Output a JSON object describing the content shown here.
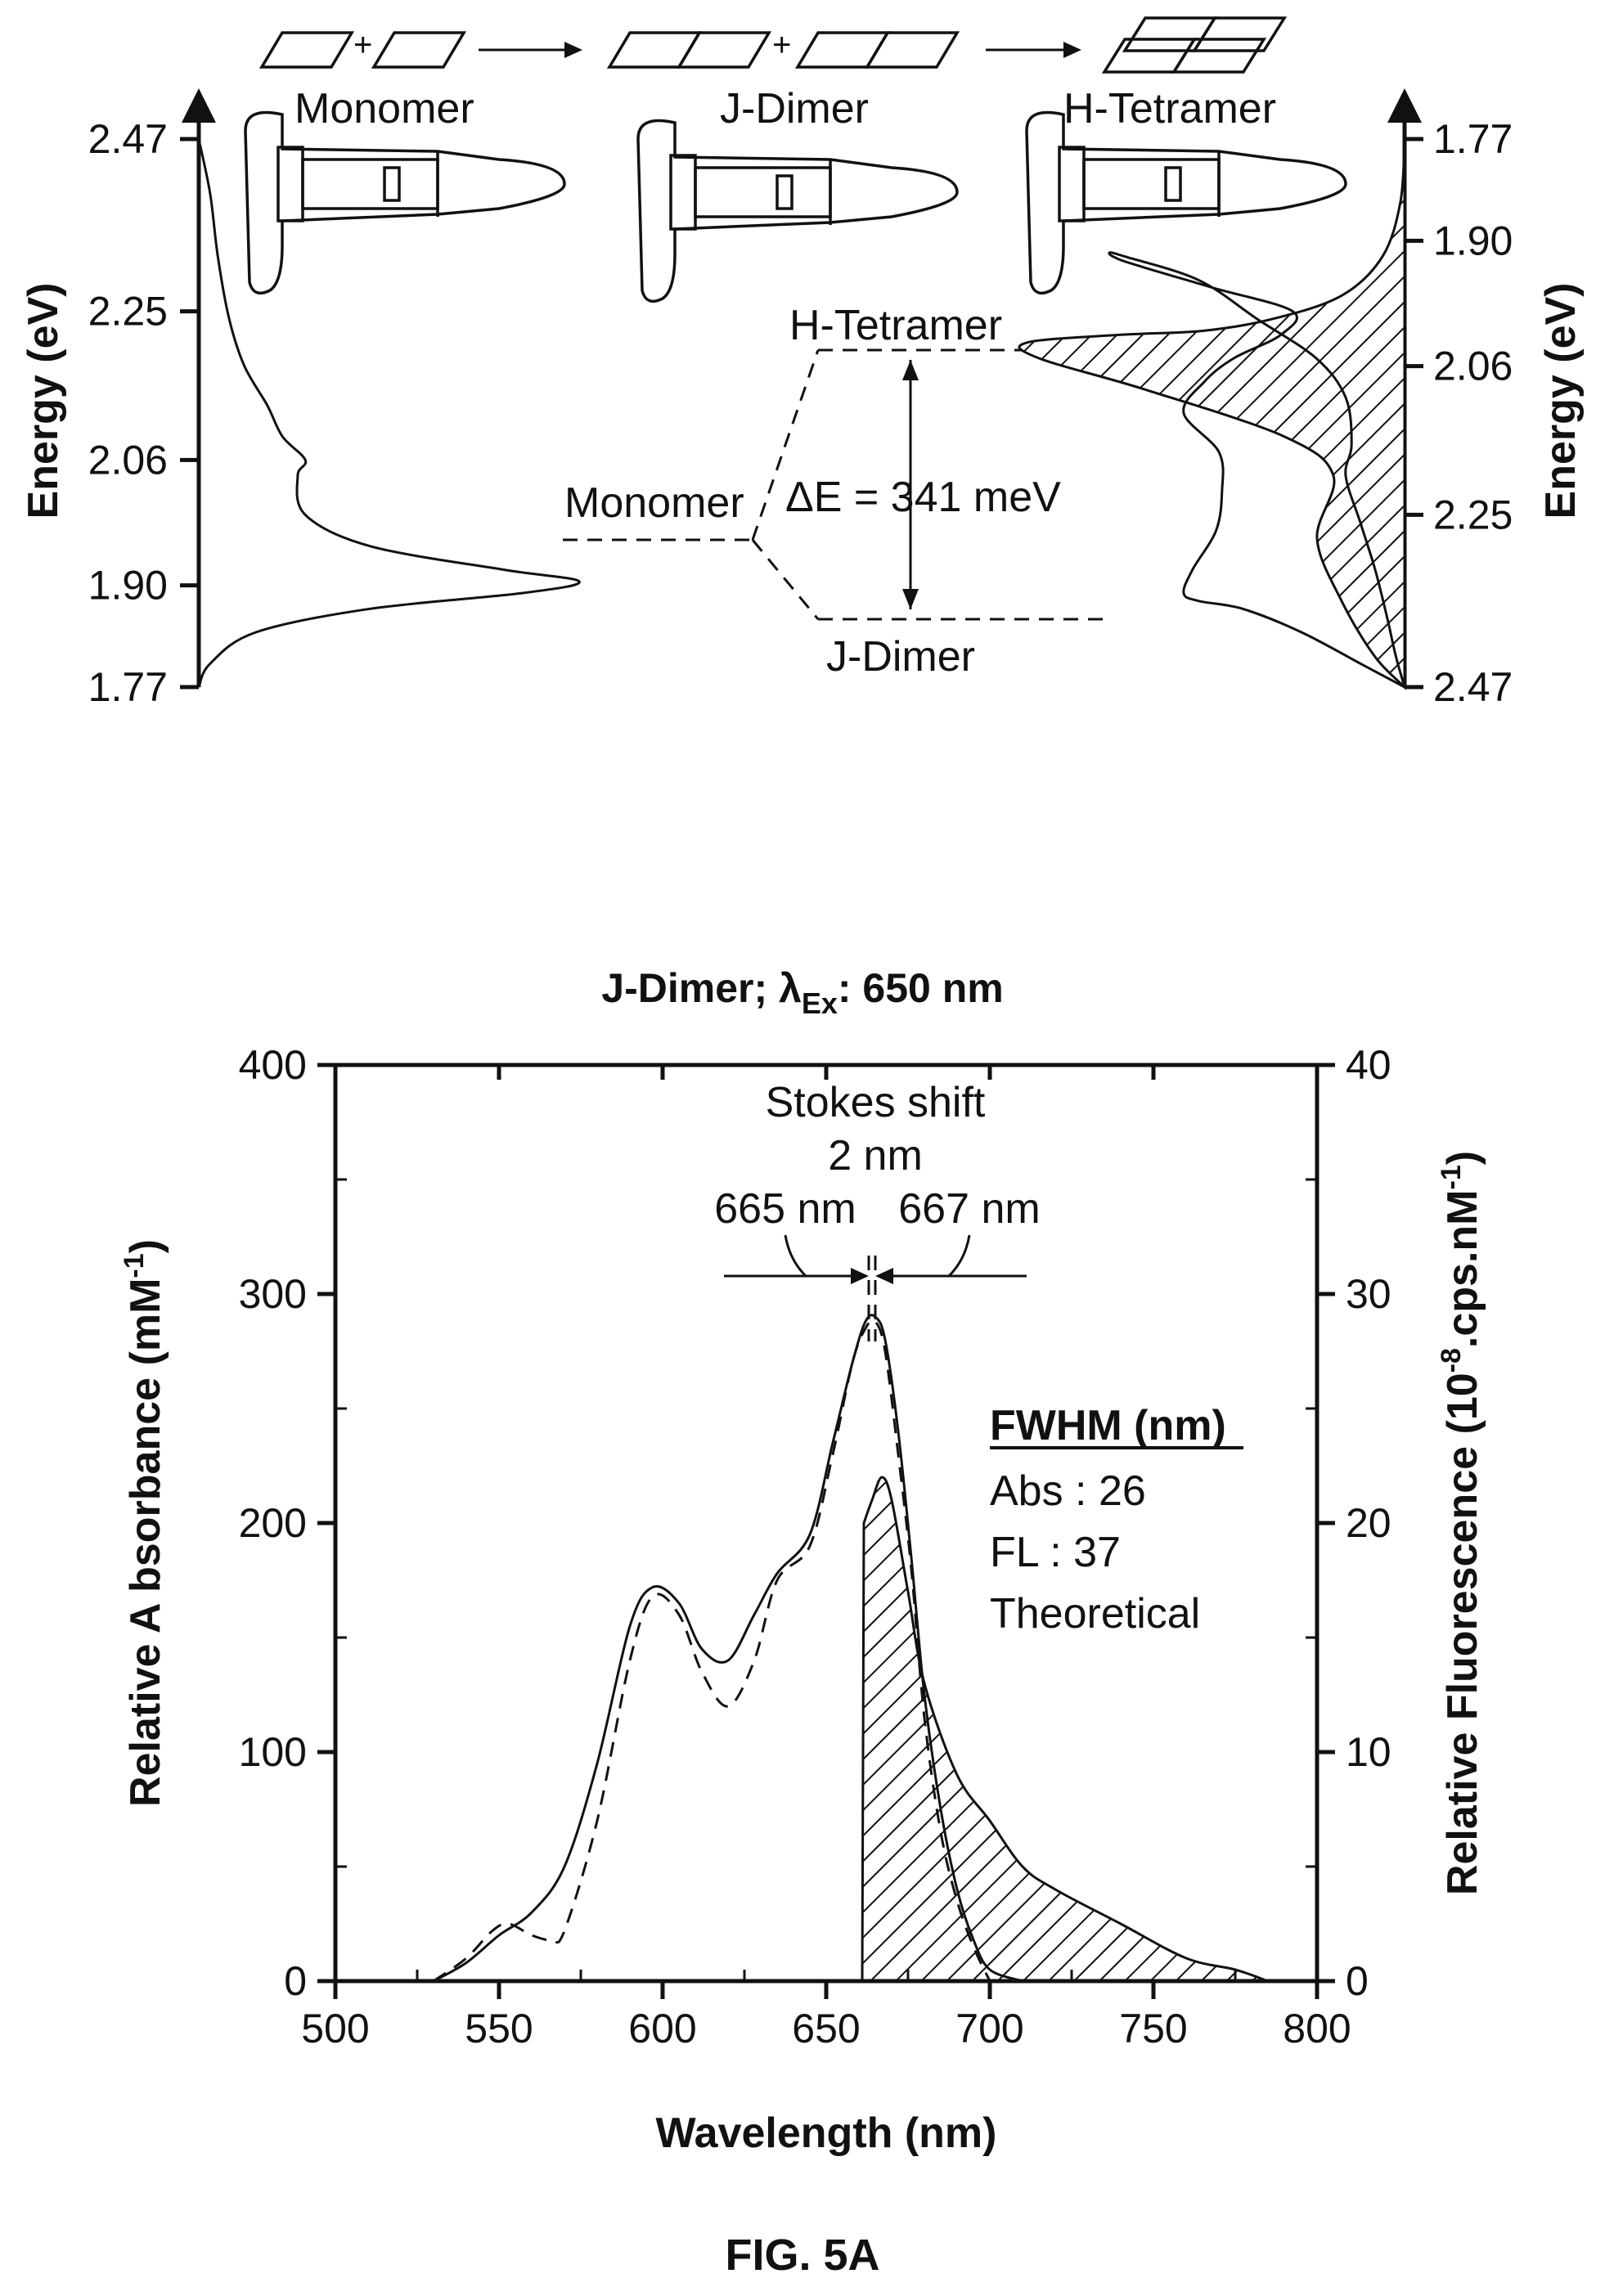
{
  "figure_label": "FIG. 5A",
  "chart_data": [
    {
      "type": "line",
      "panel": "energy-diagram",
      "left_axis": {
        "label": "Energy (eV)",
        "ticks": [
          2.47,
          2.25,
          2.06,
          1.9,
          1.77
        ]
      },
      "right_axis": {
        "label": "Energy (eV)",
        "ticks": [
          1.77,
          1.9,
          2.06,
          2.25,
          2.47
        ]
      },
      "species": [
        "Monomer",
        "J-Dimer",
        "H-Tetramer"
      ],
      "levels": {
        "h_tetramer": "H-Tetramer",
        "monomer": "Monomer",
        "j_dimer": "J-Dimer"
      },
      "delta_e_label": "ΔE = 341 meV",
      "left_spectrum": {
        "energy": [
          1.77,
          1.8,
          1.84,
          1.87,
          1.89,
          1.905,
          1.92,
          1.95,
          1.99,
          2.04,
          2.06,
          2.09,
          2.13,
          2.18,
          2.24,
          2.32,
          2.4,
          2.47
        ],
        "intensity": [
          0.0,
          0.03,
          0.15,
          0.45,
          0.85,
          1.0,
          0.8,
          0.45,
          0.28,
          0.26,
          0.28,
          0.22,
          0.18,
          0.12,
          0.08,
          0.05,
          0.03,
          0.0
        ]
      },
      "right_abs": {
        "energy": [
          2.47,
          2.44,
          2.4,
          2.37,
          2.36,
          2.35,
          2.32,
          2.27,
          2.22,
          2.17,
          2.12,
          2.08,
          2.05,
          2.02,
          1.99,
          1.96,
          1.93,
          1.92,
          1.915,
          1.92,
          1.95,
          2.0,
          2.05,
          2.1,
          2.16,
          2.2,
          2.26,
          2.32,
          2.38,
          2.43,
          2.47
        ],
        "intensity": [
          0.0,
          0.15,
          0.35,
          0.55,
          0.7,
          0.75,
          0.72,
          0.64,
          0.62,
          0.63,
          0.75,
          0.68,
          0.58,
          0.42,
          0.38,
          0.65,
          0.92,
          0.99,
          1.0,
          0.95,
          0.7,
          0.5,
          0.3,
          0.2,
          0.18,
          0.2,
          0.15,
          0.1,
          0.06,
          0.03,
          0.0
        ]
      },
      "hatched_region": "H-Tetramer band (1.77–2.47 eV)"
    },
    {
      "type": "line",
      "panel": "spectra",
      "title_prefix": "J-Dimer; λ",
      "title_sub": "Ex",
      "title_suffix": ": 650 nm",
      "xlabel": "Wavelength (nm)",
      "ylabel_left": "Relative A bsorbance (mM",
      "ylabel_left_sup": "-1",
      "ylabel_left_end": ")",
      "ylabel_right": "Relative Fluorescence (10",
      "ylabel_right_sup1": "-8",
      "ylabel_right_mid": ".cps.nM",
      "ylabel_right_sup2": "-1",
      "ylabel_right_end": ")",
      "xlim": [
        500,
        800
      ],
      "ylim_left": [
        0,
        400
      ],
      "ylim_right": [
        0,
        40
      ],
      "x_ticks": [
        500,
        550,
        600,
        650,
        700,
        750,
        800
      ],
      "y_ticks_left": [
        0,
        100,
        200,
        300,
        400
      ],
      "y_ticks_right": [
        0,
        10,
        20,
        30,
        40
      ],
      "annotations": {
        "stokes_title": "Stokes shift",
        "stokes_value": "2 nm",
        "peak_abs": "665 nm",
        "peak_fl": "667 nm",
        "fwhm_title": "FWHM (nm)",
        "fwhm_abs": "Abs : 26",
        "fwhm_fl": "FL : 37",
        "fwhm_note": "Theoretical"
      },
      "series": [
        {
          "name": "Abs",
          "style": "solid",
          "x": [
            530,
            540,
            550,
            560,
            570,
            580,
            590,
            597,
            605,
            612,
            620,
            628,
            635,
            645,
            652,
            658,
            662,
            665,
            668,
            672,
            676,
            680,
            685,
            690,
            695,
            700,
            710
          ],
          "y": [
            0,
            8,
            20,
            30,
            50,
            95,
            155,
            172,
            165,
            145,
            140,
            160,
            178,
            195,
            235,
            270,
            288,
            290,
            280,
            240,
            185,
            125,
            75,
            40,
            18,
            5,
            0
          ]
        },
        {
          "name": "Abs (theoretical)",
          "style": "dashed",
          "x": [
            530,
            540,
            548,
            553,
            560,
            566,
            570,
            580,
            590,
            597,
            605,
            612,
            620,
            628,
            635,
            645,
            652,
            658,
            662,
            665,
            668,
            672,
            676,
            680,
            685,
            690,
            695,
            700
          ],
          "y": [
            0,
            10,
            22,
            25,
            20,
            18,
            22,
            70,
            140,
            168,
            160,
            135,
            120,
            140,
            175,
            190,
            230,
            270,
            285,
            288,
            275,
            230,
            180,
            115,
            65,
            35,
            15,
            0
          ]
        },
        {
          "name": "FL",
          "style": "hatched-filled",
          "x": [
            661,
            661.5,
            664,
            667,
            670,
            675,
            680,
            690,
            700,
            710,
            720,
            740,
            760,
            775,
            785
          ],
          "y": [
            0,
            20,
            21,
            22,
            21,
            17,
            13,
            9,
            7,
            5,
            4,
            2.5,
            1.0,
            0.5,
            0
          ]
        }
      ]
    }
  ]
}
